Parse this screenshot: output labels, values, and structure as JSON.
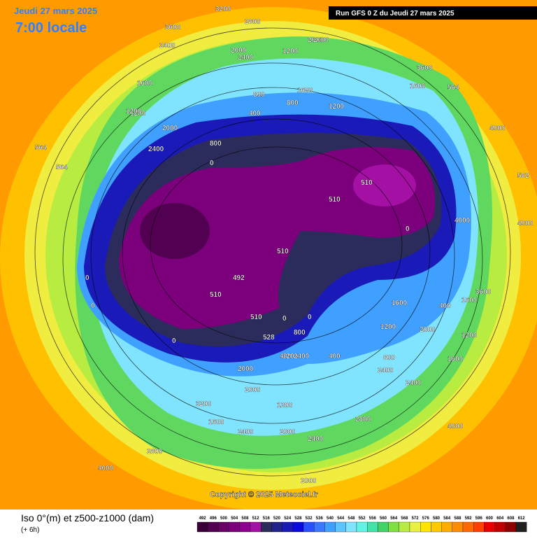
{
  "header": {
    "date": "Jeudi 27 mars 2025",
    "time": "7:00 locale",
    "run": "Run GFS 0 Z du Jeudi 27 mars 2025"
  },
  "copyright": "Copyright © 2025 Meteociel.fr",
  "legend": {
    "title": "Iso 0°(m) et z500-z1000 (dam)",
    "step": "(+ 6h)",
    "values": [
      492,
      496,
      500,
      504,
      508,
      512,
      516,
      520,
      524,
      528,
      532,
      536,
      540,
      544,
      548,
      552,
      556,
      560,
      564,
      568,
      572,
      576,
      580,
      584,
      588,
      592,
      596,
      600,
      604,
      608,
      612
    ],
    "colors": [
      "#3a0038",
      "#520052",
      "#680068",
      "#7c007c",
      "#900090",
      "#a410a4",
      "#2c2c5c",
      "#22228a",
      "#1a1ab8",
      "#0a0ae0",
      "#2850ff",
      "#3c78ff",
      "#40a0ff",
      "#5cc4ff",
      "#80e4ff",
      "#60f4e4",
      "#40e4a8",
      "#40d468",
      "#80e040",
      "#b8ec40",
      "#e8f040",
      "#ffe400",
      "#ffc800",
      "#ffac00",
      "#ff8c00",
      "#ff6a00",
      "#ff4000",
      "#e80000",
      "#c00000",
      "#900000",
      "#202020"
    ]
  },
  "map_labels": [
    "3200",
    "2800",
    "2400",
    "3600",
    "2400",
    "2000",
    "1600",
    "1200",
    "2000",
    "1600",
    "2000",
    "2400",
    "1200",
    "800",
    "400",
    "800",
    "1600",
    "1200",
    "1200",
    "2000",
    "2400",
    "800",
    "400",
    "0",
    "0",
    "0",
    "510",
    "510",
    "510",
    "510",
    "492",
    "510",
    "528",
    "0",
    "0",
    "0",
    "0",
    "400",
    "800",
    "1200",
    "1600",
    "2000",
    "800",
    "400",
    "1600",
    "1200",
    "4000",
    "4000",
    "3600",
    "3600",
    "2400",
    "2000",
    "2800",
    "3200",
    "2400",
    "4000",
    "4000",
    "2800",
    "2000",
    "1600",
    "1200",
    "2000",
    "2400",
    "1200",
    "1600",
    "2000",
    "2400",
    "582",
    "564",
    "564",
    "564",
    "4000"
  ]
}
